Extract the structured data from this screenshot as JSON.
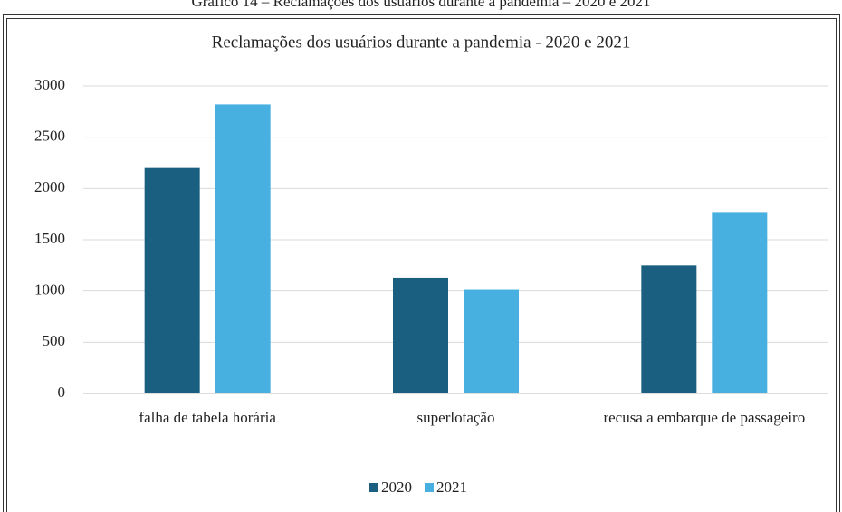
{
  "caption": "Gráfico 14 – Reclamações dos usuários durante a pandemia – 2020 e 2021",
  "chart_data": {
    "type": "bar",
    "title": "Reclamações dos usuários durante a pandemia - 2020 e 2021",
    "categories": [
      "falha de tabela horária",
      "superlotação",
      "recusa a embarque de passageiro"
    ],
    "series": [
      {
        "name": "2020",
        "color": "#1a5e80",
        "values": [
          2200,
          1130,
          1250
        ]
      },
      {
        "name": "2021",
        "color": "#47b0e0",
        "values": [
          2820,
          1010,
          1770
        ]
      }
    ],
    "ylim": [
      0,
      3000
    ],
    "yticks": [
      0,
      500,
      1000,
      1500,
      2000,
      2500,
      3000
    ],
    "grid": true,
    "legend": "bottom"
  }
}
